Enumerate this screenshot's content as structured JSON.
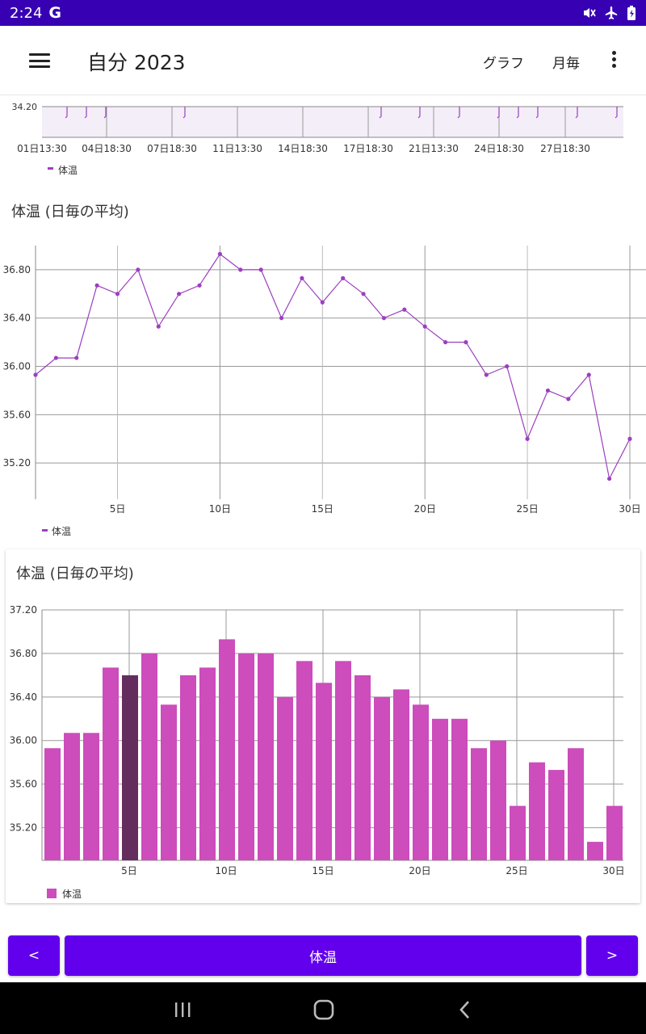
{
  "status_bar": {
    "time": "2:24",
    "g_logo": "G",
    "icons": [
      "mute-icon",
      "airplane-icon",
      "battery-icon"
    ]
  },
  "app_bar": {
    "title": "自分 2023",
    "actions": {
      "graph": "グラフ",
      "monthly": "月毎"
    },
    "menu_icon": "hamburger-icon",
    "overflow_icon": "more-vert-icon"
  },
  "raw_chart": {
    "ytick": "34.20",
    "xticks": [
      "01日13:30",
      "04日18:30",
      "07日18:30",
      "11日13:30",
      "14日18:30",
      "17日18:30",
      "21日13:30",
      "24日18:30",
      "27日18:30"
    ],
    "legend": "体温"
  },
  "line_chart": {
    "title": "体温 (日毎の平均)",
    "legend": "体温"
  },
  "bar_chart": {
    "title": "体温 (日毎の平均)",
    "legend": "体温"
  },
  "bottom_nav": {
    "prev": "<",
    "center": "体温",
    "next": ">"
  },
  "colors": {
    "status": "#3700b3",
    "primary": "#6200ee",
    "line": "#9c3fbf",
    "bar": "#cc4dbb",
    "bar_highlight": "#652d5e"
  },
  "chart_data": [
    {
      "type": "line",
      "title": "体温 (日毎の平均)",
      "x": [
        1,
        2,
        3,
        4,
        5,
        6,
        7,
        8,
        9,
        10,
        11,
        12,
        13,
        14,
        15,
        16,
        17,
        18,
        19,
        20,
        21,
        22,
        23,
        24,
        25,
        26,
        27,
        28,
        29,
        30
      ],
      "xticks": [
        "5日",
        "10日",
        "15日",
        "20日",
        "25日",
        "30日"
      ],
      "yticks": [
        "35.20",
        "35.60",
        "36.00",
        "36.40",
        "36.80"
      ],
      "series": [
        {
          "name": "体温",
          "values": [
            35.93,
            36.07,
            36.07,
            36.67,
            36.6,
            36.8,
            36.33,
            36.6,
            36.67,
            36.93,
            36.8,
            36.8,
            36.4,
            36.73,
            36.53,
            36.73,
            36.6,
            36.4,
            36.47,
            36.33,
            36.2,
            36.2,
            35.93,
            36.0,
            35.4,
            35.8,
            35.73,
            35.93,
            35.07,
            35.4
          ]
        }
      ],
      "ylim": [
        34.9,
        37.0
      ],
      "xlim": [
        1,
        30
      ],
      "legend_position": "bottom-left"
    },
    {
      "type": "bar",
      "title": "体温 (日毎の平均)",
      "x": [
        1,
        2,
        3,
        4,
        5,
        6,
        7,
        8,
        9,
        10,
        11,
        12,
        13,
        14,
        15,
        16,
        17,
        18,
        19,
        20,
        21,
        22,
        23,
        24,
        25,
        26,
        27,
        28,
        29,
        30
      ],
      "xticks": [
        "5日",
        "10日",
        "15日",
        "20日",
        "25日",
        "30日"
      ],
      "yticks": [
        "35.20",
        "35.60",
        "36.00",
        "36.40",
        "36.80",
        "37.20"
      ],
      "series": [
        {
          "name": "体温",
          "values": [
            35.93,
            36.07,
            36.07,
            36.67,
            36.6,
            36.8,
            36.33,
            36.6,
            36.67,
            36.93,
            36.8,
            36.8,
            36.4,
            36.73,
            36.53,
            36.73,
            36.6,
            36.4,
            36.47,
            36.33,
            36.2,
            36.2,
            35.93,
            36.0,
            35.4,
            35.8,
            35.73,
            35.93,
            35.07,
            35.4
          ]
        }
      ],
      "highlighted": 5,
      "ylim": [
        34.9,
        37.2
      ],
      "legend_position": "bottom-left"
    }
  ]
}
